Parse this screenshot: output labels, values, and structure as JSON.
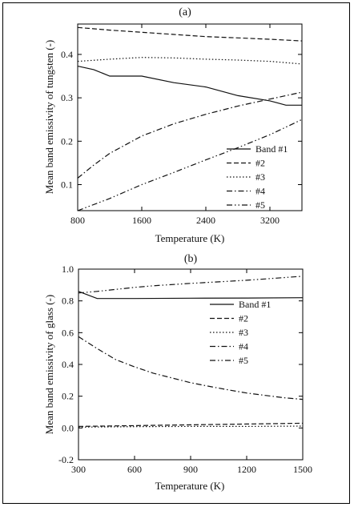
{
  "chart_data": [
    {
      "type": "line",
      "title": "(a)",
      "xlabel": "Temperature (K)",
      "ylabel": "Mean band emissivity of tungsten (-)",
      "xlim": [
        800,
        3600
      ],
      "ylim": [
        0.04,
        0.47
      ],
      "xticks": [
        800,
        1600,
        2400,
        3200
      ],
      "yticks": [
        0.1,
        0.2,
        0.3,
        0.4
      ],
      "xtick_labels": [
        "800",
        "1600",
        "2400",
        "3200"
      ],
      "ytick_labels": [
        "0.1",
        "0.2",
        "0.3",
        "0.4"
      ],
      "grid": false,
      "legend_position": "lower-right",
      "series": [
        {
          "name": "Band #1",
          "dash": "solid",
          "points": [
            [
              800,
              0.373
            ],
            [
              1000,
              0.365
            ],
            [
              1200,
              0.35
            ],
            [
              1600,
              0.35
            ],
            [
              2000,
              0.335
            ],
            [
              2400,
              0.325
            ],
            [
              2800,
              0.305
            ],
            [
              3200,
              0.293
            ],
            [
              3400,
              0.283
            ],
            [
              3600,
              0.283
            ]
          ]
        },
        {
          "name": "#2",
          "dash": "dash",
          "points": [
            [
              800,
              0.462
            ],
            [
              1200,
              0.456
            ],
            [
              1600,
              0.451
            ],
            [
              2000,
              0.446
            ],
            [
              2400,
              0.441
            ],
            [
              2800,
              0.438
            ],
            [
              3200,
              0.435
            ],
            [
              3600,
              0.431
            ]
          ]
        },
        {
          "name": "#3",
          "dash": "dot",
          "points": [
            [
              800,
              0.384
            ],
            [
              1200,
              0.389
            ],
            [
              1600,
              0.393
            ],
            [
              2000,
              0.392
            ],
            [
              2400,
              0.389
            ],
            [
              2800,
              0.387
            ],
            [
              3200,
              0.384
            ],
            [
              3600,
              0.378
            ]
          ]
        },
        {
          "name": "#4",
          "dash": "dashdot",
          "points": [
            [
              800,
              0.115
            ],
            [
              1000,
              0.145
            ],
            [
              1200,
              0.172
            ],
            [
              1600,
              0.212
            ],
            [
              2000,
              0.24
            ],
            [
              2400,
              0.262
            ],
            [
              2800,
              0.281
            ],
            [
              3200,
              0.297
            ],
            [
              3600,
              0.313
            ]
          ]
        },
        {
          "name": "#5",
          "dash": "dashdotdot",
          "points": [
            [
              800,
              0.04
            ],
            [
              1200,
              0.068
            ],
            [
              1600,
              0.1
            ],
            [
              2000,
              0.128
            ],
            [
              2400,
              0.157
            ],
            [
              2800,
              0.185
            ],
            [
              3200,
              0.215
            ],
            [
              3600,
              0.25
            ]
          ]
        }
      ]
    },
    {
      "type": "line",
      "title": "(b)",
      "xlabel": "Temperature (K)",
      "ylabel": "Mean band emissivity of glass (-)",
      "xlim": [
        300,
        1500
      ],
      "ylim": [
        -0.2,
        1.0
      ],
      "xticks": [
        300,
        600,
        900,
        1200,
        1500
      ],
      "yticks": [
        -0.2,
        0.0,
        0.2,
        0.4,
        0.6,
        0.8,
        1.0
      ],
      "xtick_labels": [
        "300",
        "600",
        "900",
        "1200",
        "1500"
      ],
      "ytick_labels": [
        "-0.2",
        "0.0",
        "0.2",
        "0.4",
        "0.6",
        "0.8",
        "1.0"
      ],
      "grid": false,
      "legend_position": "top-right",
      "series": [
        {
          "name": "Band #1",
          "dash": "solid",
          "points": [
            [
              300,
              0.86
            ],
            [
              400,
              0.815
            ],
            [
              600,
              0.815
            ],
            [
              900,
              0.817
            ],
            [
              1200,
              0.818
            ],
            [
              1500,
              0.82
            ]
          ]
        },
        {
          "name": "#2",
          "dash": "dash",
          "points": [
            [
              300,
              0.01
            ],
            [
              600,
              0.015
            ],
            [
              900,
              0.02
            ],
            [
              1200,
              0.025
            ],
            [
              1500,
              0.03
            ]
          ]
        },
        {
          "name": "#3",
          "dash": "dot",
          "points": [
            [
              300,
              0.005
            ],
            [
              600,
              0.008
            ],
            [
              900,
              0.01
            ],
            [
              1200,
              0.01
            ],
            [
              1500,
              0.012
            ]
          ]
        },
        {
          "name": "#4",
          "dash": "dashdot",
          "points": [
            [
              300,
              0.575
            ],
            [
              400,
              0.5
            ],
            [
              500,
              0.43
            ],
            [
              600,
              0.385
            ],
            [
              700,
              0.345
            ],
            [
              800,
              0.315
            ],
            [
              900,
              0.285
            ],
            [
              1000,
              0.262
            ],
            [
              1100,
              0.24
            ],
            [
              1200,
              0.22
            ],
            [
              1300,
              0.205
            ],
            [
              1400,
              0.19
            ],
            [
              1500,
              0.18
            ]
          ]
        },
        {
          "name": "#5",
          "dash": "dashdotdot",
          "points": [
            [
              300,
              0.85
            ],
            [
              400,
              0.86
            ],
            [
              600,
              0.885
            ],
            [
              700,
              0.895
            ],
            [
              900,
              0.91
            ],
            [
              1200,
              0.93
            ],
            [
              1500,
              0.955
            ]
          ]
        }
      ]
    }
  ]
}
